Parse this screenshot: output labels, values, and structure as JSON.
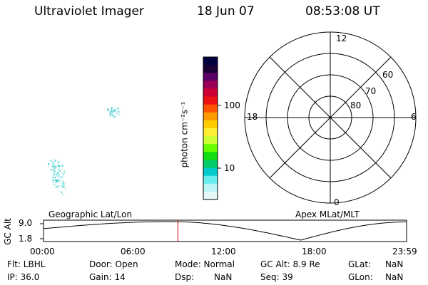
{
  "header": {
    "title": "Ultraviolet Imager",
    "date": "18 Jun 07",
    "time": "08:53:08 UT"
  },
  "colorbar": {
    "label": "photon cm⁻²s⁻¹",
    "ticks": [
      "100",
      "10"
    ],
    "colors": [
      "#000040",
      "#1a0033",
      "#5a0066",
      "#990055",
      "#cc0033",
      "#ee1111",
      "#ff5500",
      "#ff9900",
      "#ffcc00",
      "#ffee33",
      "#ccff33",
      "#66ff00",
      "#11dd11",
      "#00cc66",
      "#00cccc",
      "#66eeee",
      "#bbf4f4",
      "#e6f7f7"
    ]
  },
  "polar_plot": {
    "top_label": "12",
    "bottom_label": "0",
    "left_label": "18",
    "right_label": "6",
    "ring_labels": [
      "60",
      "70",
      "80"
    ]
  },
  "timeline": {
    "left_caption": "Geographic Lat/Lon",
    "right_caption": "Apex MLat/MLT",
    "axis_label": "GC Alt",
    "y_ticks": [
      "9.0",
      "1.8"
    ],
    "x_ticks": [
      "00:00",
      "06:00",
      "12:00",
      "18:00",
      "23:59"
    ],
    "marker_time": "08:53:08",
    "marker_color": "#cc0000"
  },
  "info": {
    "flt": "Flt: LBHL",
    "ip": "IP: 36.0",
    "door": "Door: Open",
    "gain": "Gain: 14",
    "mode": "Mode: Normal",
    "dsp_label": "Dsp:",
    "dsp_value": "NaN",
    "gc_alt": "GC Alt: 8.9 Re",
    "seq": "Seq: 39",
    "glat_label": "GLat:",
    "glat_value": "NaN",
    "glon_label": "GLon:",
    "glon_value": "NaN"
  }
}
